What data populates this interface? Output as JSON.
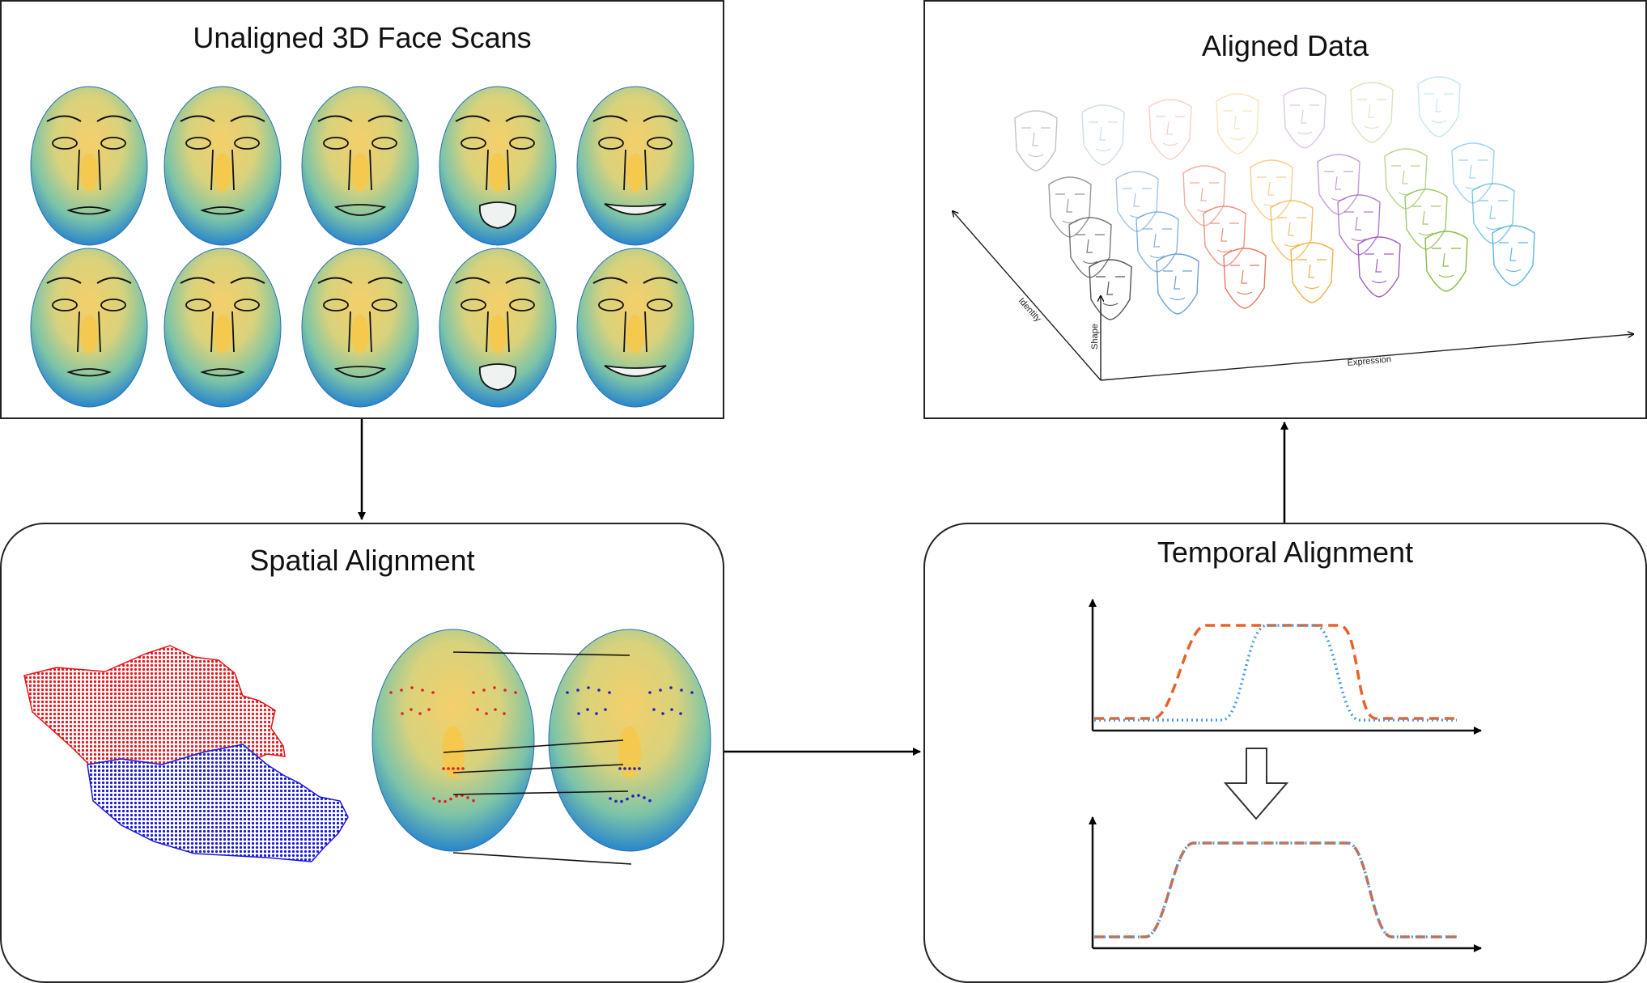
{
  "panels": {
    "unaligned": {
      "title": "Unaligned 3D Face Scans"
    },
    "aligned": {
      "title": "Aligned Data",
      "axes": {
        "identity": "Identity",
        "shape": "Shape",
        "expression": "Expression"
      }
    },
    "spatial": {
      "title": "Spatial Alignment"
    },
    "temporal": {
      "title": "Temporal Alignment"
    }
  },
  "colors": {
    "border": "#222222",
    "red_cloud": "#e8141b",
    "blue_cloud": "#1a1ad6",
    "curve_orange": "#e8622a",
    "curve_blue": "#4a9be0",
    "face_center": "#f2c24a",
    "face_edge": "#2b8fd0"
  },
  "face_line_colors": [
    "#555555",
    "#6aa0d8",
    "#e87860",
    "#f0b040",
    "#a060c0",
    "#88bb44",
    "#5cb8e0"
  ]
}
